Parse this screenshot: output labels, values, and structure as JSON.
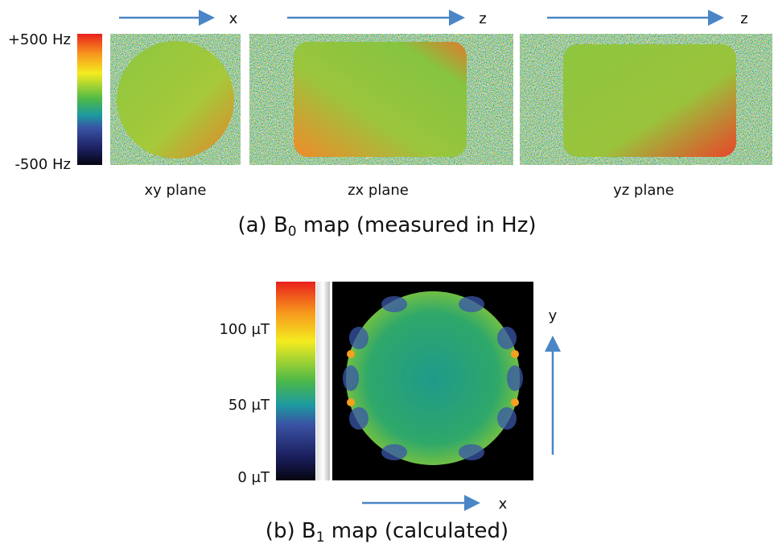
{
  "panel_a": {
    "axes": [
      "x",
      "z",
      "z"
    ],
    "colorbar_max": "+500 Hz",
    "colorbar_min": "-500 Hz",
    "planes": [
      "xy plane",
      "zx plane",
      "yz plane"
    ],
    "caption": {
      "prefix": "(a) B",
      "subscript": "0",
      "suffix": " map (measured in Hz)"
    }
  },
  "panel_b": {
    "colorbar_labels": [
      "100 µT",
      "50 µT",
      "0 µT"
    ],
    "axis_y": "y",
    "axis_x": "x",
    "caption": {
      "prefix": "(b) B",
      "subscript": "1",
      "suffix": " map (calculated)"
    }
  }
}
